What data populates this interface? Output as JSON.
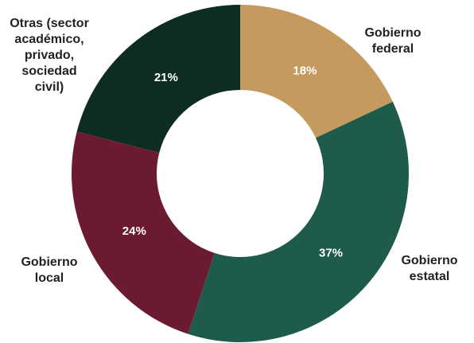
{
  "chart_data": {
    "type": "donut",
    "categories": [
      "Gobierno\nfederal",
      "Gobierno\nestatal",
      "Gobierno\nlocal",
      "Otras (sector\nacadémico,\nprivado,\nsociedad\ncivil)"
    ],
    "values": [
      18,
      37,
      24,
      21
    ],
    "value_labels": [
      "18%",
      "37%",
      "24%",
      "21%"
    ],
    "colors": [
      "#c49a5e",
      "#1f5b4b",
      "#6b1a2f",
      "#0d2c23"
    ]
  }
}
